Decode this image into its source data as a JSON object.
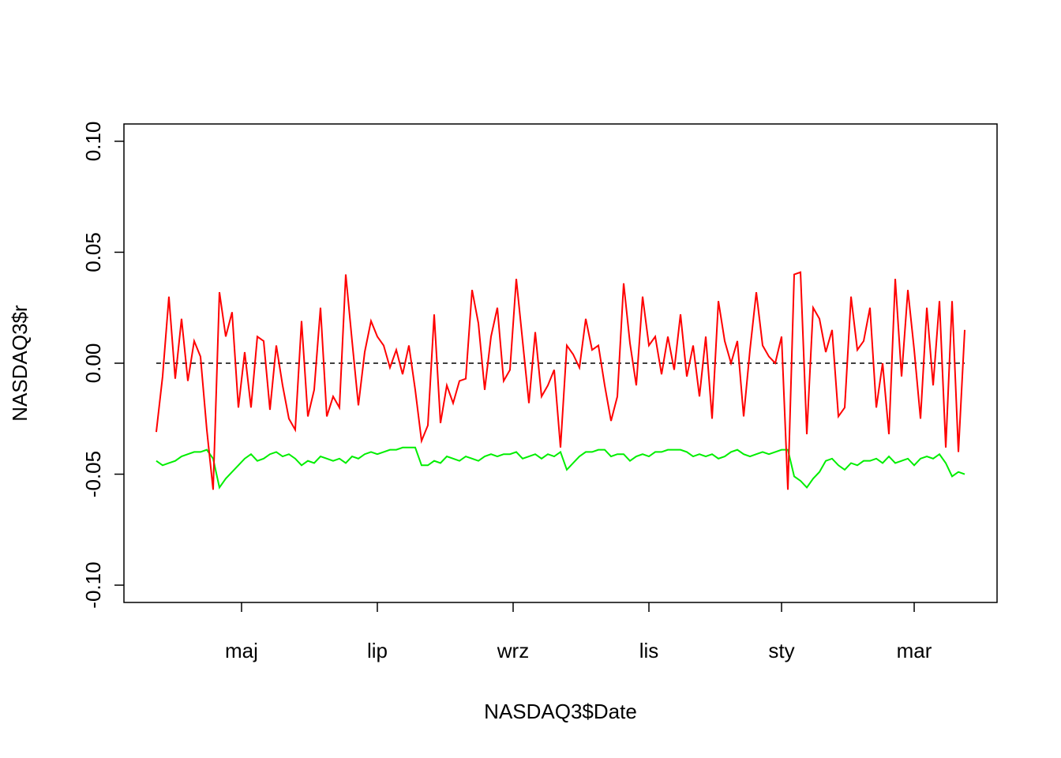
{
  "chart_data": {
    "type": "line",
    "xlabel": "NASDAQ3$Date",
    "ylabel": "NASDAQ3$r",
    "x": [
      0,
      2,
      4,
      6,
      8,
      10,
      12,
      14,
      16,
      18,
      20,
      22,
      24,
      26,
      28,
      30,
      32,
      34,
      36,
      38,
      40,
      42,
      44,
      46,
      48,
      50,
      52,
      54,
      56,
      58,
      60,
      62,
      64,
      66,
      68,
      70,
      72,
      74,
      76,
      78,
      80,
      82,
      84,
      86,
      88,
      90,
      92,
      94,
      96,
      98,
      100,
      102,
      104,
      106,
      108,
      110,
      112,
      114,
      116,
      118,
      120,
      122,
      124,
      126,
      128,
      130,
      132,
      134,
      136,
      138,
      140,
      142,
      144,
      146,
      148,
      150,
      152,
      154,
      156,
      158,
      160,
      162,
      164,
      166,
      168,
      170,
      172,
      174,
      176,
      178,
      180,
      182,
      184,
      186,
      188,
      190,
      192,
      194,
      196,
      198,
      200,
      202,
      204,
      206,
      208,
      210,
      212,
      214,
      216,
      218,
      220,
      222,
      224,
      226,
      228,
      230,
      232,
      234,
      236,
      238,
      240,
      242,
      244,
      246,
      248,
      250,
      252,
      254,
      256
    ],
    "series": [
      {
        "color": "#ff0000",
        "values": [
          -0.031,
          -0.006,
          0.03,
          -0.007,
          0.02,
          -0.008,
          0.01,
          0.003,
          -0.03,
          -0.057,
          0.032,
          0.012,
          0.023,
          -0.02,
          0.005,
          -0.02,
          0.012,
          0.01,
          -0.021,
          0.008,
          -0.01,
          -0.025,
          -0.03,
          0.019,
          -0.024,
          -0.012,
          0.025,
          -0.024,
          -0.015,
          -0.02,
          0.04,
          0.01,
          -0.019,
          0.005,
          0.019,
          0.012,
          0.008,
          -0.002,
          0.006,
          -0.005,
          0.008,
          -0.012,
          -0.035,
          -0.028,
          0.022,
          -0.027,
          -0.01,
          -0.018,
          -0.008,
          -0.007,
          0.033,
          0.018,
          -0.012,
          0.012,
          0.025,
          -0.008,
          -0.003,
          0.038,
          0.01,
          -0.018,
          0.014,
          -0.015,
          -0.01,
          -0.003,
          -0.038,
          0.008,
          0.004,
          -0.002,
          0.02,
          0.006,
          0.008,
          -0.01,
          -0.026,
          -0.015,
          0.036,
          0.009,
          -0.01,
          0.03,
          0.008,
          0.012,
          -0.005,
          0.012,
          -0.003,
          0.022,
          -0.006,
          0.008,
          -0.015,
          0.012,
          -0.025,
          0.028,
          0.01,
          0.0,
          0.01,
          -0.024,
          0.006,
          0.032,
          0.008,
          0.003,
          0.0,
          0.012,
          -0.057,
          0.04,
          0.041,
          -0.032,
          0.025,
          0.02,
          0.005,
          0.015,
          -0.024,
          -0.02,
          0.03,
          0.006,
          0.01,
          0.025,
          -0.02,
          0.0,
          -0.032,
          0.038,
          -0.006,
          0.033,
          0.006,
          -0.025,
          0.025,
          -0.01,
          0.028,
          -0.038,
          0.028,
          -0.04,
          0.015
        ]
      },
      {
        "color": "#00ee00",
        "values": [
          -0.044,
          -0.046,
          -0.045,
          -0.044,
          -0.042,
          -0.041,
          -0.04,
          -0.04,
          -0.039,
          -0.043,
          -0.056,
          -0.052,
          -0.049,
          -0.046,
          -0.043,
          -0.041,
          -0.044,
          -0.043,
          -0.041,
          -0.04,
          -0.042,
          -0.041,
          -0.043,
          -0.046,
          -0.044,
          -0.045,
          -0.042,
          -0.043,
          -0.044,
          -0.043,
          -0.045,
          -0.042,
          -0.043,
          -0.041,
          -0.04,
          -0.041,
          -0.04,
          -0.039,
          -0.039,
          -0.038,
          -0.038,
          -0.038,
          -0.046,
          -0.046,
          -0.044,
          -0.045,
          -0.042,
          -0.043,
          -0.044,
          -0.042,
          -0.043,
          -0.044,
          -0.042,
          -0.041,
          -0.042,
          -0.041,
          -0.041,
          -0.04,
          -0.043,
          -0.042,
          -0.041,
          -0.043,
          -0.041,
          -0.042,
          -0.04,
          -0.048,
          -0.045,
          -0.042,
          -0.04,
          -0.04,
          -0.039,
          -0.039,
          -0.042,
          -0.041,
          -0.041,
          -0.044,
          -0.042,
          -0.041,
          -0.042,
          -0.04,
          -0.04,
          -0.039,
          -0.039,
          -0.039,
          -0.04,
          -0.042,
          -0.041,
          -0.042,
          -0.041,
          -0.043,
          -0.042,
          -0.04,
          -0.039,
          -0.041,
          -0.042,
          -0.041,
          -0.04,
          -0.041,
          -0.04,
          -0.039,
          -0.039,
          -0.051,
          -0.053,
          -0.056,
          -0.052,
          -0.049,
          -0.044,
          -0.043,
          -0.046,
          -0.048,
          -0.045,
          -0.046,
          -0.044,
          -0.044,
          -0.043,
          -0.045,
          -0.042,
          -0.045,
          -0.044,
          -0.043,
          -0.046,
          -0.043,
          -0.042,
          -0.043,
          -0.041,
          -0.045,
          -0.051,
          -0.049,
          -0.05
        ]
      }
    ],
    "xlim": [
      -10.24,
      266.24
    ],
    "xticks": [
      {
        "value": 27,
        "label": "maj"
      },
      {
        "value": 70,
        "label": "lip"
      },
      {
        "value": 113,
        "label": "wrz"
      },
      {
        "value": 156,
        "label": "lis"
      },
      {
        "value": 198,
        "label": "sty"
      },
      {
        "value": 240,
        "label": "mar"
      }
    ],
    "ylim": [
      -0.1078,
      0.1078
    ],
    "yticks": [
      {
        "value": -0.1,
        "label": "-0.10"
      },
      {
        "value": -0.05,
        "label": "-0.05"
      },
      {
        "value": 0,
        "label": "0.00"
      },
      {
        "value": 0.05,
        "label": "0.05"
      },
      {
        "value": 0.1,
        "label": "0.10"
      }
    ],
    "reference_line": {
      "value": 0,
      "style": "dashed"
    }
  }
}
